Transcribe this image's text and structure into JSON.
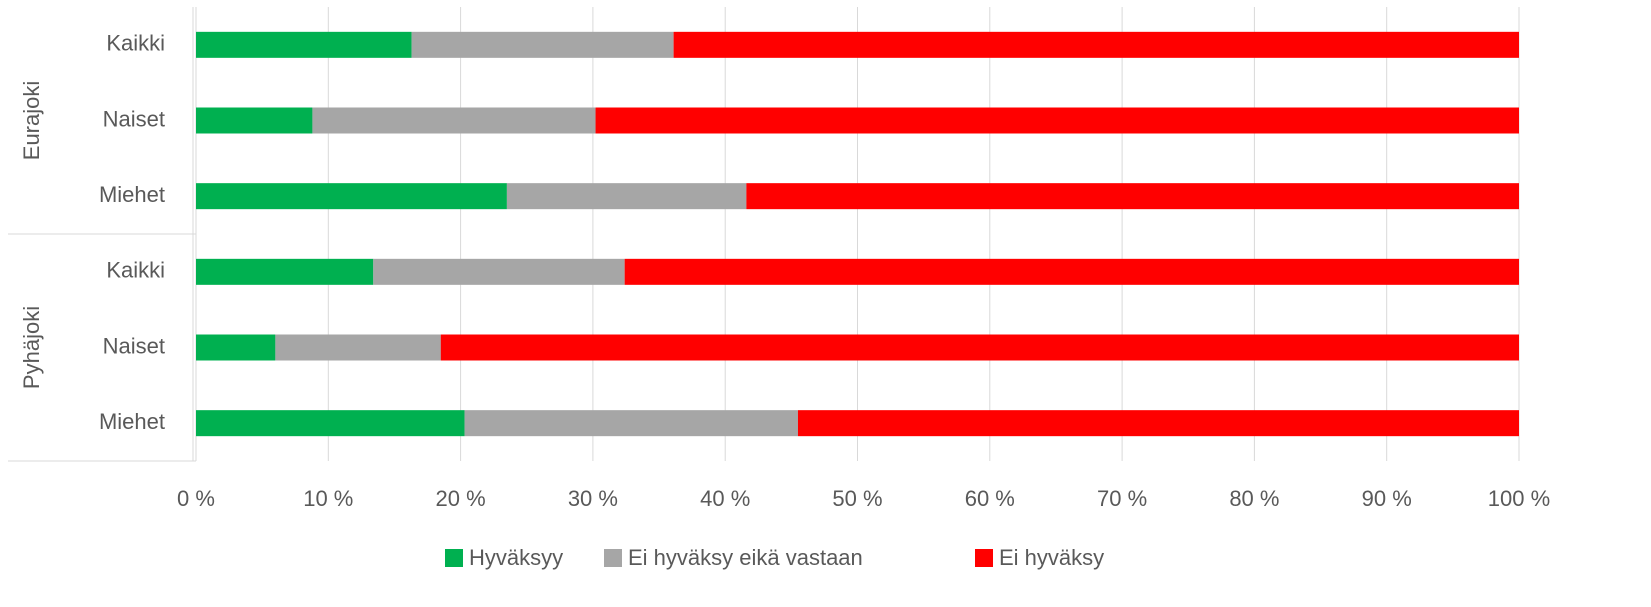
{
  "chart_data": {
    "type": "stacked_barh",
    "groups": [
      {
        "name": "Eurajoki",
        "categories": [
          "Kaikki",
          "Naiset",
          "Miehet"
        ]
      },
      {
        "name": "Pyhäjoki",
        "categories": [
          "Kaikki",
          "Naiset",
          "Miehet"
        ]
      }
    ],
    "series": [
      {
        "name": "Hyväksyy",
        "color": "#00b050",
        "values": [
          16.3,
          8.8,
          23.5,
          13.4,
          6.0,
          20.3
        ]
      },
      {
        "name": "Ei hyväksy eikä vastaan",
        "color": "#a6a6a6",
        "values": [
          19.8,
          21.4,
          18.1,
          19.0,
          12.5,
          25.2
        ]
      },
      {
        "name": "Ei hyväksy",
        "color": "#ff0000",
        "values": [
          63.9,
          69.8,
          58.4,
          67.6,
          81.5,
          54.5
        ]
      }
    ],
    "xlim": [
      0,
      100
    ],
    "xticks": [
      {
        "value": 0,
        "label": "0 %"
      },
      {
        "value": 10,
        "label": "10 %"
      },
      {
        "value": 20,
        "label": "20 %"
      },
      {
        "value": 30,
        "label": "30 %"
      },
      {
        "value": 40,
        "label": "40 %"
      },
      {
        "value": 50,
        "label": "50 %"
      },
      {
        "value": 60,
        "label": "60 %"
      },
      {
        "value": 70,
        "label": "70 %"
      },
      {
        "value": 80,
        "label": "80 %"
      },
      {
        "value": 90,
        "label": "90 %"
      },
      {
        "value": 100,
        "label": "100 %"
      }
    ],
    "grid": true,
    "legend": "bottom"
  }
}
